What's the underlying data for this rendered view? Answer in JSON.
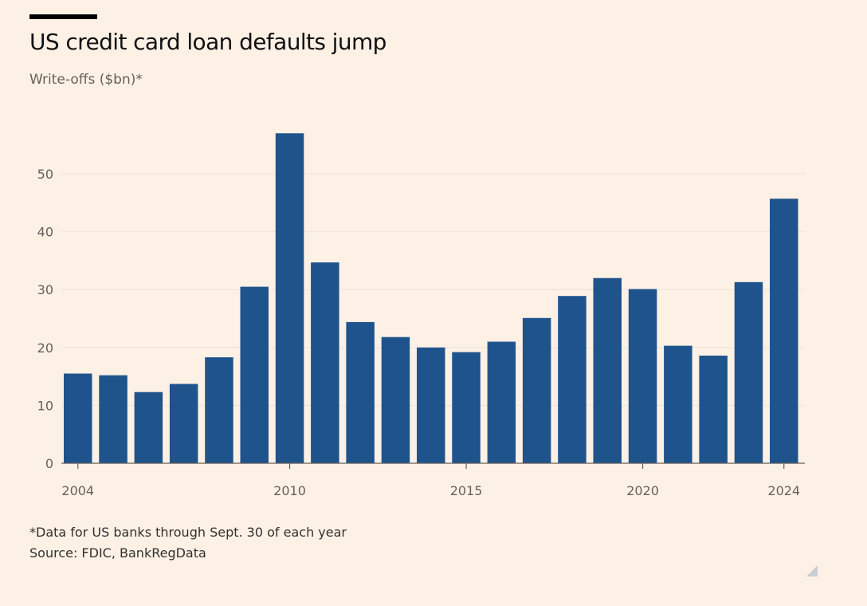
{
  "header": {
    "title": "US credit card loan defaults jump",
    "subtitle": "Write-offs ($bn)*"
  },
  "footer": {
    "note": "*Data for US banks through Sept. 30 of each year",
    "source": "Source: FDIC, BankRegData"
  },
  "colors": {
    "background": "#fdf1e6",
    "bar": "#1f538c",
    "grid": "#efe2d6",
    "axis": "#66605c",
    "tick_text": "#66605c"
  },
  "icons": {
    "resize_handle": "resize-corner-icon"
  },
  "chart_data": {
    "type": "bar",
    "title": "US credit card loan defaults jump",
    "subtitle": "Write-offs ($bn)*",
    "categories": [
      2004,
      2005,
      2006,
      2007,
      2008,
      2009,
      2010,
      2011,
      2012,
      2013,
      2014,
      2015,
      2016,
      2017,
      2018,
      2019,
      2020,
      2021,
      2022,
      2023,
      2024
    ],
    "values": [
      15.5,
      15.2,
      12.3,
      13.7,
      18.3,
      30.5,
      57.0,
      34.7,
      24.4,
      21.8,
      20.0,
      19.2,
      21.0,
      25.1,
      28.9,
      32.0,
      30.1,
      20.3,
      18.6,
      31.3,
      45.7
    ],
    "xticks": [
      2004,
      2010,
      2015,
      2020,
      2024
    ],
    "yticks": [
      0,
      10,
      20,
      30,
      40,
      50
    ],
    "ylim": [
      0,
      57
    ],
    "xlabel": "",
    "ylabel": "",
    "grid": true,
    "legend": "none"
  }
}
